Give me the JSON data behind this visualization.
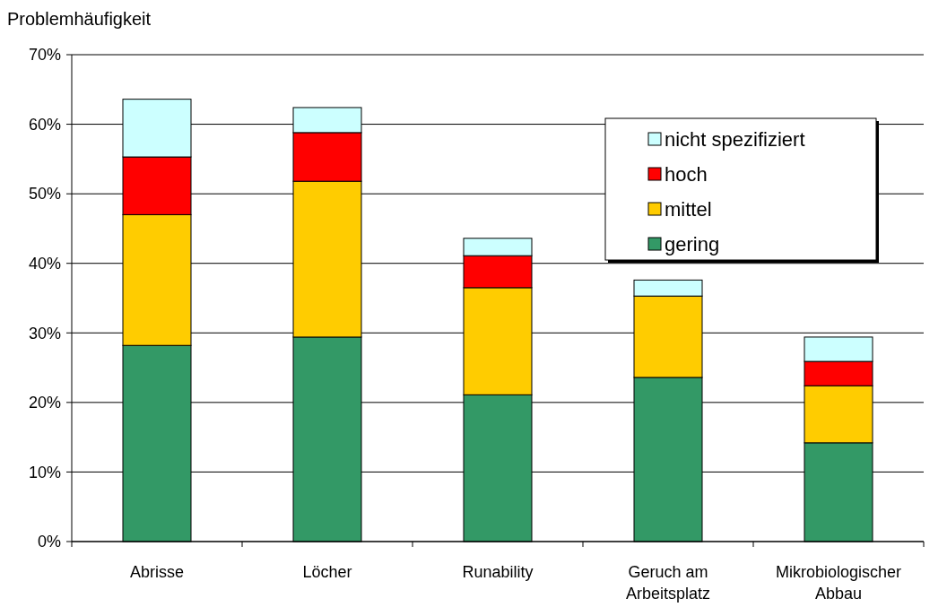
{
  "chart_data": {
    "type": "bar",
    "stacked": true,
    "ylabel": "Problemhäufigkeit",
    "categories": [
      "Abrisse",
      "Löcher",
      "Runability",
      "Geruch am Arbeitsplatz",
      "Mikrobiologischer Abbau"
    ],
    "series": [
      {
        "name": "gering",
        "color": "#339966",
        "values": [
          28.2,
          29.4,
          21.1,
          23.6,
          14.2
        ]
      },
      {
        "name": "mittel",
        "color": "#ffcc00",
        "values": [
          18.8,
          22.4,
          15.4,
          11.7,
          8.2
        ]
      },
      {
        "name": "hoch",
        "color": "#ff0000",
        "values": [
          8.3,
          7.0,
          4.6,
          0,
          3.5
        ]
      },
      {
        "name": "nicht spezifiziert",
        "color": "#ccffff",
        "values": [
          8.3,
          3.6,
          2.5,
          2.3,
          3.5
        ]
      }
    ],
    "ylim": [
      0,
      70
    ],
    "yticks": [
      {
        "value": 0,
        "label": "0%"
      },
      {
        "value": 10,
        "label": "10%"
      },
      {
        "value": 20,
        "label": "20%"
      },
      {
        "value": 30,
        "label": "30%"
      },
      {
        "value": 40,
        "label": "40%"
      },
      {
        "value": 50,
        "label": "50%"
      },
      {
        "value": 60,
        "label": "60%"
      },
      {
        "value": 70,
        "label": "70%"
      }
    ],
    "grid": "y",
    "legend": "top right"
  }
}
